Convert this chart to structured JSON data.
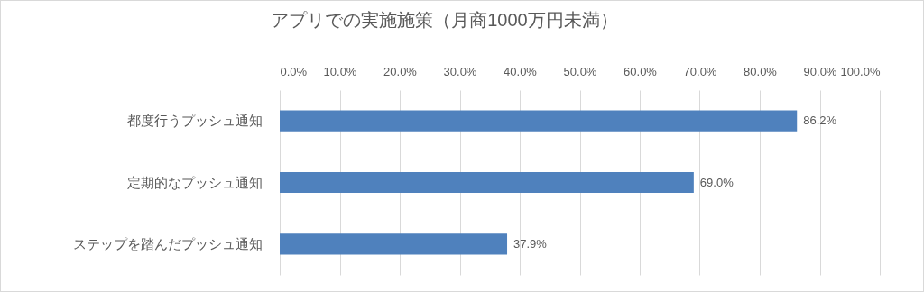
{
  "chart_data": {
    "type": "bar",
    "orientation": "horizontal",
    "title": "アプリでの実施施策（月商1000万円未満）",
    "categories": [
      "都度行うプッシュ通知",
      "定期的なプッシュ通知",
      "ステップを踏んだプッシュ通知"
    ],
    "values": [
      86.2,
      69.0,
      37.9
    ],
    "value_labels": [
      "86.2%",
      "69.0%",
      "37.9%"
    ],
    "color": "#4f81bd",
    "xlim": [
      0,
      100
    ],
    "xticks": [
      {
        "value": 0,
        "label": "0.0%"
      },
      {
        "value": 10,
        "label": "10.0%"
      },
      {
        "value": 20,
        "label": "20.0%"
      },
      {
        "value": 30,
        "label": "30.0%"
      },
      {
        "value": 40,
        "label": "40.0%"
      },
      {
        "value": 50,
        "label": "50.0%"
      },
      {
        "value": 60,
        "label": "60.0%"
      },
      {
        "value": 70,
        "label": "70.0%"
      },
      {
        "value": 80,
        "label": "80.0%"
      },
      {
        "value": 90,
        "label": "90.0%"
      },
      {
        "value": 100,
        "label": "100.0%"
      }
    ],
    "grid": true
  }
}
